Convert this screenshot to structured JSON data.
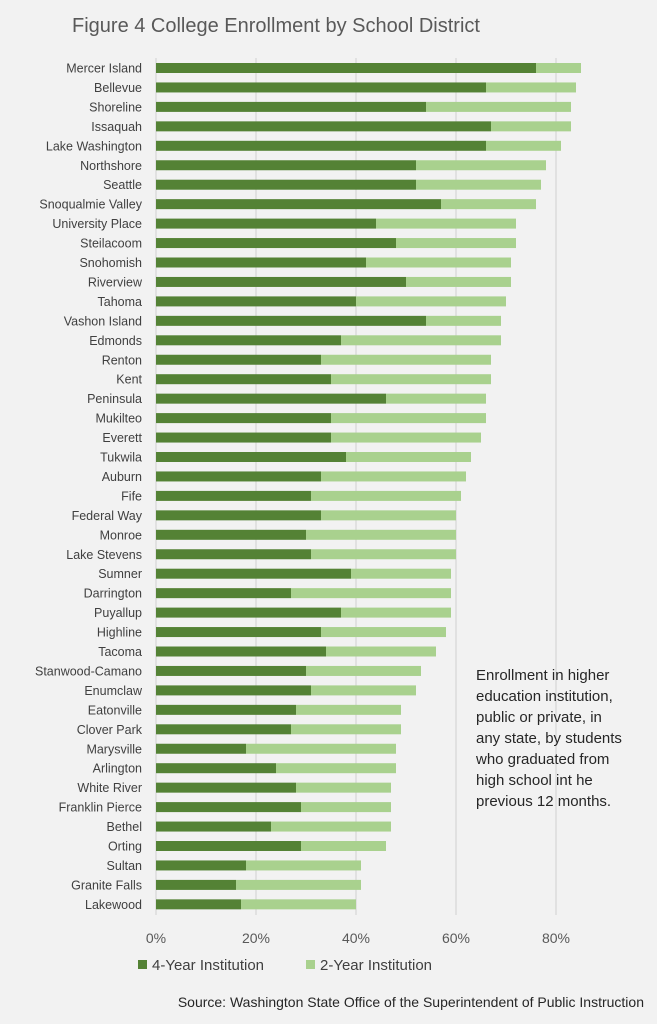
{
  "chart_data": {
    "type": "bar",
    "orientation": "horizontal",
    "stacked": true,
    "title": "Figure 4 College Enrollment by School District",
    "categories": [
      "Mercer Island",
      "Bellevue",
      "Shoreline",
      "Issaquah",
      "Lake Washington",
      "Northshore",
      "Seattle",
      "Snoqualmie Valley",
      "University Place",
      "Steilacoom",
      "Snohomish",
      "Riverview",
      "Tahoma",
      "Vashon Island",
      "Edmonds",
      "Renton",
      "Kent",
      "Peninsula",
      "Mukilteo",
      "Everett",
      "Tukwila",
      "Auburn",
      "Fife",
      "Federal Way",
      "Monroe",
      "Lake Stevens",
      "Sumner",
      "Darrington",
      "Puyallup",
      "Highline",
      "Tacoma",
      "Stanwood-Camano",
      "Enumclaw",
      "Eatonville",
      "Clover Park",
      "Marysville",
      "Arlington",
      "White River",
      "Franklin Pierce",
      "Bethel",
      "Orting",
      "Sultan",
      "Granite Falls",
      "Lakewood"
    ],
    "series": [
      {
        "name": "4-Year Institution",
        "color": "#548235",
        "values": [
          76,
          66,
          54,
          67,
          66,
          52,
          52,
          57,
          44,
          48,
          42,
          50,
          40,
          54,
          37,
          33,
          35,
          46,
          35,
          35,
          38,
          33,
          31,
          33,
          30,
          31,
          39,
          27,
          37,
          33,
          34,
          30,
          31,
          28,
          27,
          18,
          24,
          28,
          29,
          23,
          29,
          18,
          16,
          17
        ]
      },
      {
        "name": "2-Year Institution",
        "color": "#a9d18e",
        "values": [
          9,
          18,
          29,
          16,
          15,
          26,
          25,
          19,
          28,
          24,
          29,
          21,
          30,
          15,
          32,
          34,
          32,
          20,
          31,
          30,
          25,
          29,
          30,
          27,
          30,
          29,
          20,
          32,
          22,
          25,
          22,
          23,
          21,
          21,
          22,
          30,
          24,
          19,
          18,
          24,
          17,
          23,
          25,
          23
        ]
      }
    ],
    "xlim": [
      0,
      90
    ],
    "x_ticks": [
      0,
      20,
      40,
      60,
      80
    ],
    "x_tick_labels": [
      "0%",
      "20%",
      "40%",
      "60%",
      "80%"
    ],
    "grid": "vertical",
    "legend": "bottom"
  },
  "annotation": {
    "lines": [
      "Enrollment in higher",
      "education institution,",
      "public or private, in",
      "any state, by students",
      "who graduated from",
      "high school int he",
      "previous 12 months."
    ]
  },
  "source": "Source: Washington State Office of the Superintendent of Public Instruction"
}
